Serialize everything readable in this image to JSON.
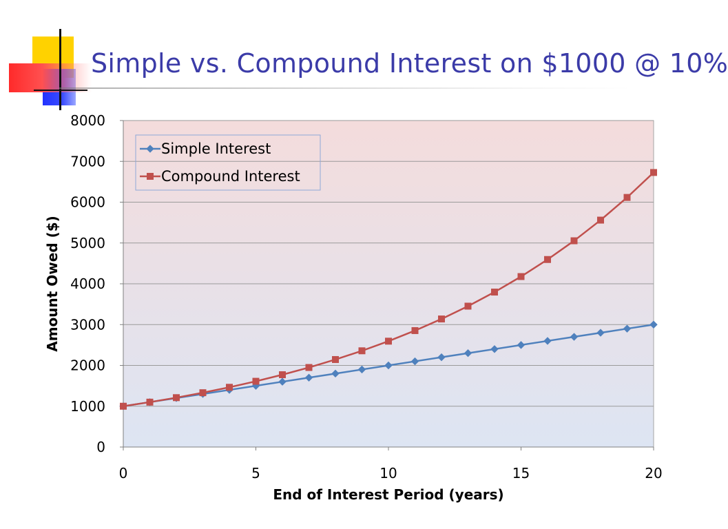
{
  "slide": {
    "title": "Simple vs. Compound Interest on $1000 @ 10%"
  },
  "chart_data": {
    "type": "line",
    "title": "",
    "xlabel": "End of Interest Period (years)",
    "ylabel": "Amount Owed ($)",
    "xlim": [
      0,
      20
    ],
    "ylim": [
      0,
      8000
    ],
    "x_ticks": [
      0,
      5,
      10,
      15,
      20
    ],
    "y_ticks": [
      0,
      1000,
      2000,
      3000,
      4000,
      5000,
      6000,
      7000,
      8000
    ],
    "grid": true,
    "legend_position": "top-left",
    "x": [
      0,
      1,
      2,
      3,
      4,
      5,
      6,
      7,
      8,
      9,
      10,
      11,
      12,
      13,
      14,
      15,
      16,
      17,
      18,
      19,
      20
    ],
    "series": [
      {
        "name": "Simple Interest",
        "color": "#4f81bd",
        "marker": "diamond",
        "values": [
          1000,
          1100,
          1200,
          1300,
          1400,
          1500,
          1600,
          1700,
          1800,
          1900,
          2000,
          2100,
          2200,
          2300,
          2400,
          2500,
          2600,
          2700,
          2800,
          2900,
          3000
        ]
      },
      {
        "name": "Compound Interest",
        "color": "#c0504d",
        "marker": "square",
        "values": [
          1000,
          1100,
          1210,
          1331,
          1464,
          1611,
          1772,
          1949,
          2144,
          2358,
          2594,
          2853,
          3138,
          3452,
          3797,
          4177,
          4595,
          5054,
          5560,
          6116,
          6727
        ]
      }
    ]
  }
}
